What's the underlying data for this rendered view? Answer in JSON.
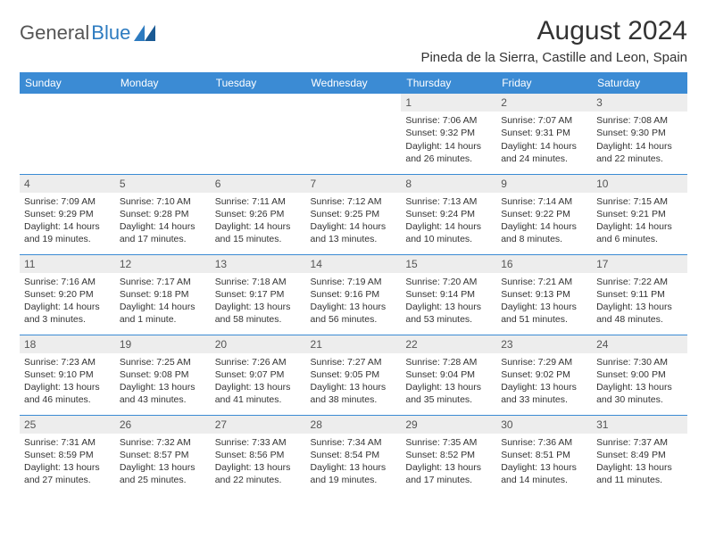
{
  "logo": {
    "text1": "General",
    "text2": "Blue"
  },
  "title": "August 2024",
  "location": "Pineda de la Sierra, Castille and Leon, Spain",
  "colors": {
    "header_bg": "#3b8bd4",
    "header_text": "#ffffff",
    "border": "#3b8bd4",
    "daynum_bg": "#ededed",
    "text": "#333333",
    "logo_gray": "#555555",
    "logo_blue": "#2d7bc0"
  },
  "weekdays": [
    "Sunday",
    "Monday",
    "Tuesday",
    "Wednesday",
    "Thursday",
    "Friday",
    "Saturday"
  ],
  "weeks": [
    [
      {
        "n": "",
        "sr": "",
        "ss": "",
        "dl": ""
      },
      {
        "n": "",
        "sr": "",
        "ss": "",
        "dl": ""
      },
      {
        "n": "",
        "sr": "",
        "ss": "",
        "dl": ""
      },
      {
        "n": "",
        "sr": "",
        "ss": "",
        "dl": ""
      },
      {
        "n": "1",
        "sr": "Sunrise: 7:06 AM",
        "ss": "Sunset: 9:32 PM",
        "dl": "Daylight: 14 hours and 26 minutes."
      },
      {
        "n": "2",
        "sr": "Sunrise: 7:07 AM",
        "ss": "Sunset: 9:31 PM",
        "dl": "Daylight: 14 hours and 24 minutes."
      },
      {
        "n": "3",
        "sr": "Sunrise: 7:08 AM",
        "ss": "Sunset: 9:30 PM",
        "dl": "Daylight: 14 hours and 22 minutes."
      }
    ],
    [
      {
        "n": "4",
        "sr": "Sunrise: 7:09 AM",
        "ss": "Sunset: 9:29 PM",
        "dl": "Daylight: 14 hours and 19 minutes."
      },
      {
        "n": "5",
        "sr": "Sunrise: 7:10 AM",
        "ss": "Sunset: 9:28 PM",
        "dl": "Daylight: 14 hours and 17 minutes."
      },
      {
        "n": "6",
        "sr": "Sunrise: 7:11 AM",
        "ss": "Sunset: 9:26 PM",
        "dl": "Daylight: 14 hours and 15 minutes."
      },
      {
        "n": "7",
        "sr": "Sunrise: 7:12 AM",
        "ss": "Sunset: 9:25 PM",
        "dl": "Daylight: 14 hours and 13 minutes."
      },
      {
        "n": "8",
        "sr": "Sunrise: 7:13 AM",
        "ss": "Sunset: 9:24 PM",
        "dl": "Daylight: 14 hours and 10 minutes."
      },
      {
        "n": "9",
        "sr": "Sunrise: 7:14 AM",
        "ss": "Sunset: 9:22 PM",
        "dl": "Daylight: 14 hours and 8 minutes."
      },
      {
        "n": "10",
        "sr": "Sunrise: 7:15 AM",
        "ss": "Sunset: 9:21 PM",
        "dl": "Daylight: 14 hours and 6 minutes."
      }
    ],
    [
      {
        "n": "11",
        "sr": "Sunrise: 7:16 AM",
        "ss": "Sunset: 9:20 PM",
        "dl": "Daylight: 14 hours and 3 minutes."
      },
      {
        "n": "12",
        "sr": "Sunrise: 7:17 AM",
        "ss": "Sunset: 9:18 PM",
        "dl": "Daylight: 14 hours and 1 minute."
      },
      {
        "n": "13",
        "sr": "Sunrise: 7:18 AM",
        "ss": "Sunset: 9:17 PM",
        "dl": "Daylight: 13 hours and 58 minutes."
      },
      {
        "n": "14",
        "sr": "Sunrise: 7:19 AM",
        "ss": "Sunset: 9:16 PM",
        "dl": "Daylight: 13 hours and 56 minutes."
      },
      {
        "n": "15",
        "sr": "Sunrise: 7:20 AM",
        "ss": "Sunset: 9:14 PM",
        "dl": "Daylight: 13 hours and 53 minutes."
      },
      {
        "n": "16",
        "sr": "Sunrise: 7:21 AM",
        "ss": "Sunset: 9:13 PM",
        "dl": "Daylight: 13 hours and 51 minutes."
      },
      {
        "n": "17",
        "sr": "Sunrise: 7:22 AM",
        "ss": "Sunset: 9:11 PM",
        "dl": "Daylight: 13 hours and 48 minutes."
      }
    ],
    [
      {
        "n": "18",
        "sr": "Sunrise: 7:23 AM",
        "ss": "Sunset: 9:10 PM",
        "dl": "Daylight: 13 hours and 46 minutes."
      },
      {
        "n": "19",
        "sr": "Sunrise: 7:25 AM",
        "ss": "Sunset: 9:08 PM",
        "dl": "Daylight: 13 hours and 43 minutes."
      },
      {
        "n": "20",
        "sr": "Sunrise: 7:26 AM",
        "ss": "Sunset: 9:07 PM",
        "dl": "Daylight: 13 hours and 41 minutes."
      },
      {
        "n": "21",
        "sr": "Sunrise: 7:27 AM",
        "ss": "Sunset: 9:05 PM",
        "dl": "Daylight: 13 hours and 38 minutes."
      },
      {
        "n": "22",
        "sr": "Sunrise: 7:28 AM",
        "ss": "Sunset: 9:04 PM",
        "dl": "Daylight: 13 hours and 35 minutes."
      },
      {
        "n": "23",
        "sr": "Sunrise: 7:29 AM",
        "ss": "Sunset: 9:02 PM",
        "dl": "Daylight: 13 hours and 33 minutes."
      },
      {
        "n": "24",
        "sr": "Sunrise: 7:30 AM",
        "ss": "Sunset: 9:00 PM",
        "dl": "Daylight: 13 hours and 30 minutes."
      }
    ],
    [
      {
        "n": "25",
        "sr": "Sunrise: 7:31 AM",
        "ss": "Sunset: 8:59 PM",
        "dl": "Daylight: 13 hours and 27 minutes."
      },
      {
        "n": "26",
        "sr": "Sunrise: 7:32 AM",
        "ss": "Sunset: 8:57 PM",
        "dl": "Daylight: 13 hours and 25 minutes."
      },
      {
        "n": "27",
        "sr": "Sunrise: 7:33 AM",
        "ss": "Sunset: 8:56 PM",
        "dl": "Daylight: 13 hours and 22 minutes."
      },
      {
        "n": "28",
        "sr": "Sunrise: 7:34 AM",
        "ss": "Sunset: 8:54 PM",
        "dl": "Daylight: 13 hours and 19 minutes."
      },
      {
        "n": "29",
        "sr": "Sunrise: 7:35 AM",
        "ss": "Sunset: 8:52 PM",
        "dl": "Daylight: 13 hours and 17 minutes."
      },
      {
        "n": "30",
        "sr": "Sunrise: 7:36 AM",
        "ss": "Sunset: 8:51 PM",
        "dl": "Daylight: 13 hours and 14 minutes."
      },
      {
        "n": "31",
        "sr": "Sunrise: 7:37 AM",
        "ss": "Sunset: 8:49 PM",
        "dl": "Daylight: 13 hours and 11 minutes."
      }
    ]
  ]
}
